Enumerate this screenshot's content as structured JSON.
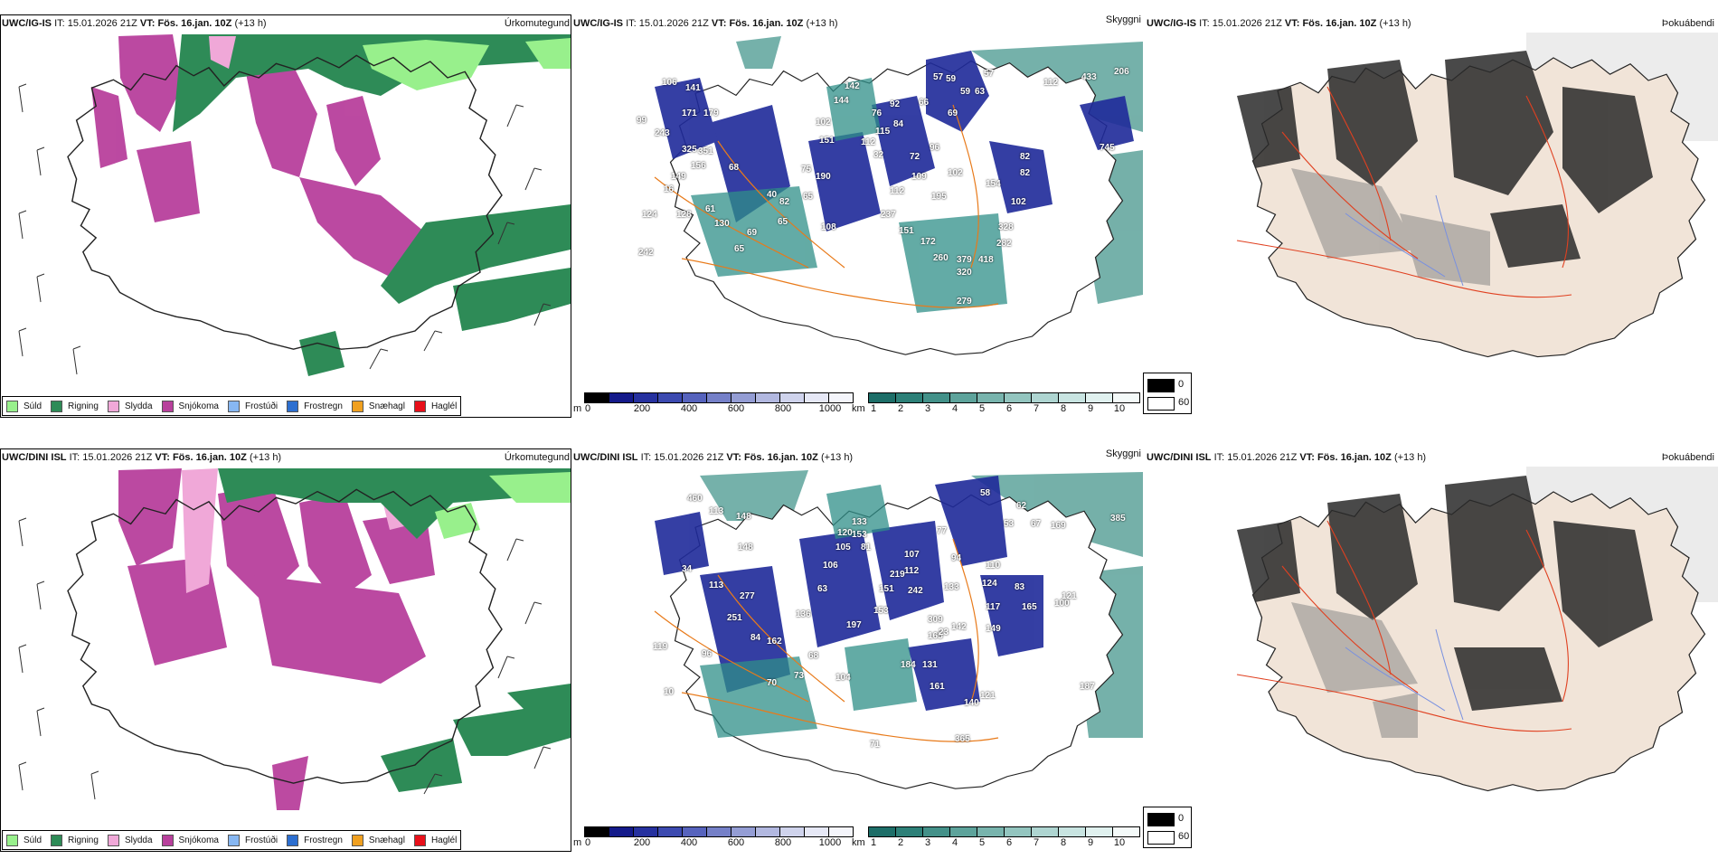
{
  "colors": {
    "sudd": "#98f08c",
    "rigning": "#2e8b57",
    "slydda": "#f0a8d8",
    "snjokoma": "#b8409c",
    "frostudi": "#87b7f2",
    "frostregn": "#2d6fd0",
    "snaehagl": "#f0a020",
    "haglel": "#e8101a",
    "vis_dark": "#1f2a9a",
    "vis_teal": "#2f8f88",
    "coast_orange": "#e87a1a",
    "road_red": "#e04020"
  },
  "rows": [
    {
      "model": "UWC/IG-IS",
      "it_label": "IT:",
      "it_value": "15.01.2026 21Z",
      "vt_label": "VT:",
      "vt_value": "Fös. 16.jan. 10Z",
      "lead": "(+13 h)",
      "panels": {
        "precip_type": "Úrkomutegund",
        "visibility": "Skyggni",
        "fog": "Þokuábendi"
      },
      "ceiling_labels": [
        "57",
        "59",
        "59",
        "63",
        "66",
        "69",
        "84",
        "96",
        "72",
        "109",
        "102",
        "195",
        "112",
        "237",
        "154",
        "82",
        "82",
        "102",
        "328",
        "282",
        "418",
        "379",
        "320",
        "260",
        "172",
        "151",
        "279",
        "106",
        "141",
        "171",
        "179",
        "243",
        "325",
        "351",
        "156",
        "149",
        "68",
        "128",
        "61",
        "82",
        "65",
        "108",
        "65",
        "130",
        "69",
        "65",
        "75",
        "190",
        "151",
        "40",
        "102",
        "144",
        "142",
        "76",
        "115",
        "92",
        "32",
        "112",
        "745",
        "206",
        "433",
        "112",
        "57",
        "99",
        "16",
        "124",
        "242"
      ]
    },
    {
      "model": "UWC/DINI ISL",
      "it_label": "IT:",
      "it_value": "15.01.2026 21Z",
      "vt_label": "VT:",
      "vt_value": "Fös. 16.jan. 10Z",
      "lead": "(+13 h)",
      "panels": {
        "precip_type": "Úrkomutegund",
        "visibility": "Skyggni",
        "fog": "Þokuábendi"
      },
      "ceiling_labels": [
        "58",
        "62",
        "53",
        "67",
        "169",
        "77",
        "94",
        "110",
        "124",
        "83",
        "165",
        "100",
        "117",
        "149",
        "133",
        "309",
        "165",
        "23",
        "142",
        "131",
        "184",
        "161",
        "140",
        "121",
        "112",
        "107",
        "242",
        "219",
        "151",
        "153",
        "197",
        "136",
        "84",
        "162",
        "96",
        "73",
        "70",
        "68",
        "104",
        "251",
        "277",
        "113",
        "34",
        "119",
        "148",
        "113",
        "460",
        "120",
        "105",
        "81",
        "63",
        "133",
        "153",
        "106",
        "385",
        "187",
        "365",
        "121",
        "71",
        "148",
        "10"
      ]
    }
  ],
  "precip_legend": [
    {
      "label": "Súld",
      "color_key": "sudd"
    },
    {
      "label": "Rigning",
      "color_key": "rigning"
    },
    {
      "label": "Slydda",
      "color_key": "slydda"
    },
    {
      "label": "Snjókoma",
      "color_key": "snjokoma"
    },
    {
      "label": "Frostúði",
      "color_key": "frostudi"
    },
    {
      "label": "Frostregn",
      "color_key": "frostregn"
    },
    {
      "label": "Snæhagl",
      "color_key": "snaehagl"
    },
    {
      "label": "Haglél",
      "color_key": "haglel"
    }
  ],
  "ceiling_bar": {
    "unit": "m",
    "ticks": [
      "0",
      "200",
      "400",
      "600",
      "800",
      "1000"
    ],
    "colors": [
      "#000000",
      "#141a8a",
      "#26319f",
      "#3c4ab0",
      "#5663bd",
      "#7580c8",
      "#949dd4",
      "#b2b8e0",
      "#cfd3ec",
      "#e6e8f6",
      "#f4f5fb"
    ]
  },
  "visibility_bar": {
    "unit": "km",
    "ticks": [
      "1",
      "2",
      "3",
      "4",
      "5",
      "6",
      "7",
      "8",
      "9",
      "10"
    ],
    "colors": [
      "#1d6e68",
      "#2d8078",
      "#439189",
      "#5da39b",
      "#78b4ad",
      "#93c5bf",
      "#aed5d1",
      "#c8e4e1",
      "#e0f1ef",
      "#f4faf9"
    ]
  },
  "fog_legend": [
    {
      "label": "0",
      "color": "#000000"
    },
    {
      "label": "60",
      "color": "#ffffff"
    }
  ]
}
